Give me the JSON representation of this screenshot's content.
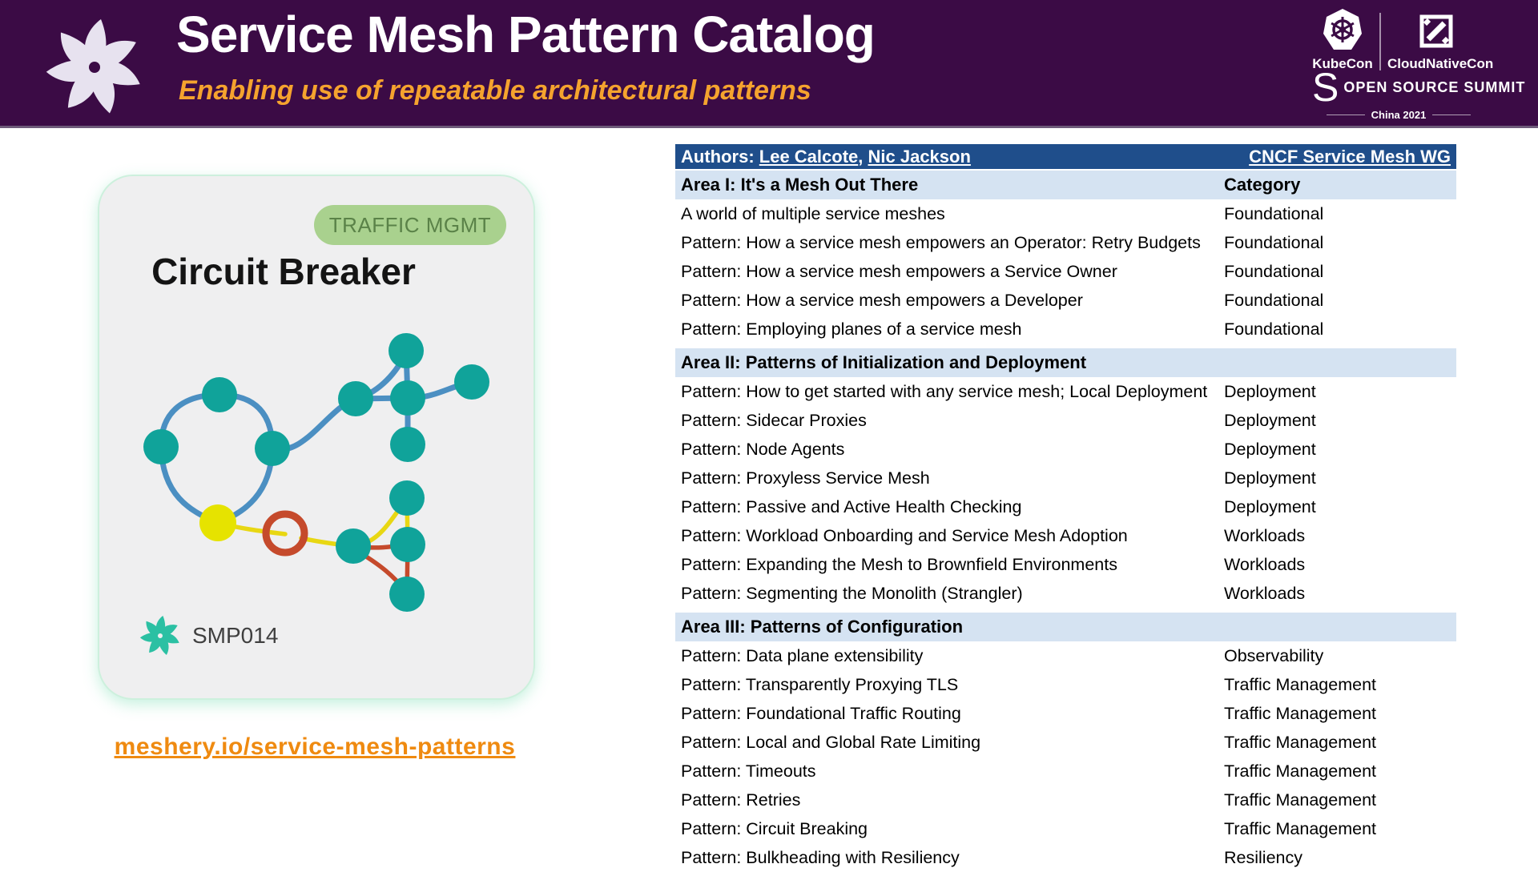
{
  "header": {
    "title": "Service Mesh Pattern Catalog",
    "subtitle": "Enabling use of repeatable architectural patterns",
    "kubecon_label": "KubeCon",
    "cloudnativecon_label": "CloudNativeCon",
    "oss_s": "S",
    "oss_label": "OPEN SOURCE SUMMIT",
    "event_label": "China 2021"
  },
  "card": {
    "badge": "TRAFFIC MGMT",
    "title": "Circuit Breaker",
    "id": "SMP014"
  },
  "link": {
    "text": "meshery.io/service-mesh-patterns"
  },
  "table": {
    "authors_label": "Authors: ",
    "authors": [
      "Lee Calcote",
      "Nic Jackson"
    ],
    "authors_sep": ", ",
    "wg_link": "CNCF Service Mesh WG",
    "sections": [
      {
        "title": "Area I: It's a Mesh Out There",
        "category_label": "Category",
        "rows": [
          {
            "name": "A world of multiple service meshes",
            "category": "Foundational"
          },
          {
            "name": "Pattern: How a service mesh empowers an Operator: Retry Budgets",
            "category": "Foundational"
          },
          {
            "name": "Pattern: How a service mesh empowers a Service Owner",
            "category": "Foundational"
          },
          {
            "name": "Pattern: How a service mesh empowers a Developer",
            "category": "Foundational"
          },
          {
            "name": "Pattern: Employing planes of a service mesh",
            "category": "Foundational"
          }
        ]
      },
      {
        "title": "Area II: Patterns of Initialization and Deployment",
        "category_label": "",
        "rows": [
          {
            "name": "Pattern: How to get started with any service mesh; Local Deployment",
            "category": "Deployment"
          },
          {
            "name": "Pattern: Sidecar Proxies",
            "category": "Deployment"
          },
          {
            "name": "Pattern: Node Agents",
            "category": "Deployment"
          },
          {
            "name": "Pattern: Proxyless Service Mesh",
            "category": "Deployment"
          },
          {
            "name": "Pattern: Passive and Active Health Checking",
            "category": "Deployment"
          },
          {
            "name": "Pattern: Workload Onboarding and Service Mesh Adoption",
            "category": "Workloads"
          },
          {
            "name": "Pattern: Expanding the Mesh to Brownfield Environments",
            "category": "Workloads"
          },
          {
            "name": "Pattern: Segmenting the Monolith (Strangler)",
            "category": "Workloads"
          }
        ]
      },
      {
        "title": "Area III: Patterns of Configuration",
        "category_label": "",
        "rows": [
          {
            "name": "Pattern: Data plane extensibility",
            "category": "Observability"
          },
          {
            "name": "Pattern: Transparently Proxying TLS",
            "category": "Traffic Management"
          },
          {
            "name": "Pattern: Foundational Traffic Routing",
            "category": "Traffic Management"
          },
          {
            "name": "Pattern: Local and Global Rate Limiting",
            "category": "Traffic Management"
          },
          {
            "name": "Pattern: Timeouts",
            "category": "Traffic Management"
          },
          {
            "name": "Pattern: Retries",
            "category": "Traffic Management"
          },
          {
            "name": "Pattern: Circuit Breaking",
            "category": "Traffic Management"
          },
          {
            "name": "Pattern: Bulkheading with Resiliency",
            "category": "Resiliency"
          }
        ]
      }
    ]
  },
  "colors": {
    "header_purple": "#3b0b45",
    "subtitle_orange": "#f5a32e",
    "table_header_blue": "#1f4e8b",
    "section_light_blue": "#d5e3f2",
    "badge_green_bg": "#a9d18e",
    "badge_green_text": "#5a8248",
    "node_teal": "#10a39a",
    "node_yellow": "#e6e300",
    "edge_blue": "#4b8fc2",
    "edge_yellow": "#e8d713",
    "edge_red": "#c54a2c",
    "link_orange": "#ef8a10"
  }
}
